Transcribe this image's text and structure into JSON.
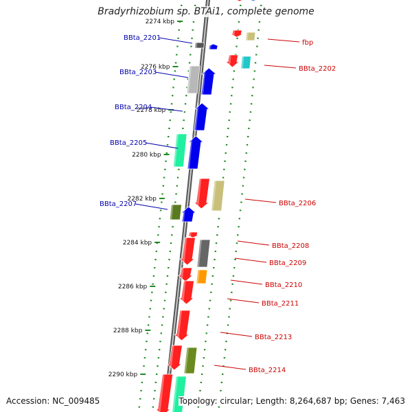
{
  "title": "Bradyrhizobium sp. BTAi1, complete genome",
  "footer": {
    "accession": "Accession: NC_009485",
    "topology": "Topology: circular; Length: 8,264,687 bp; Genes: 7,463"
  },
  "colors": {
    "backbone": "#8e8e8e",
    "guide": "#1f8a1f",
    "label_left": "#0000aa",
    "label_right": "#cc0000"
  },
  "chart_data": {
    "type": "genome-map",
    "ticks": [
      {
        "label": "2274 kbp"
      },
      {
        "label": "2276 kbp"
      },
      {
        "label": "2278 kbp"
      },
      {
        "label": "2280 kbp"
      },
      {
        "label": "2282 kbp"
      },
      {
        "label": "2284 kbp"
      },
      {
        "label": "2286 kbp"
      },
      {
        "label": "2288 kbp"
      },
      {
        "label": "2290 kbp"
      }
    ],
    "gene_labels": [
      {
        "name": "BBta_2201",
        "side": "left"
      },
      {
        "name": "BBta_2203",
        "side": "left"
      },
      {
        "name": "BBta_2204",
        "side": "left"
      },
      {
        "name": "BBta_2205",
        "side": "left"
      },
      {
        "name": "BBta_2207",
        "side": "left"
      },
      {
        "name": "fbp",
        "side": "right"
      },
      {
        "name": "BBta_2202",
        "side": "right"
      },
      {
        "name": "BBta_2206",
        "side": "right"
      },
      {
        "name": "BBta_2208",
        "side": "right"
      },
      {
        "name": "BBta_2209",
        "side": "right"
      },
      {
        "name": "BBta_2210",
        "side": "right"
      },
      {
        "name": "BBta_2211",
        "side": "right"
      },
      {
        "name": "BBta_2213",
        "side": "right"
      },
      {
        "name": "BBta_2214",
        "side": "right"
      }
    ]
  }
}
